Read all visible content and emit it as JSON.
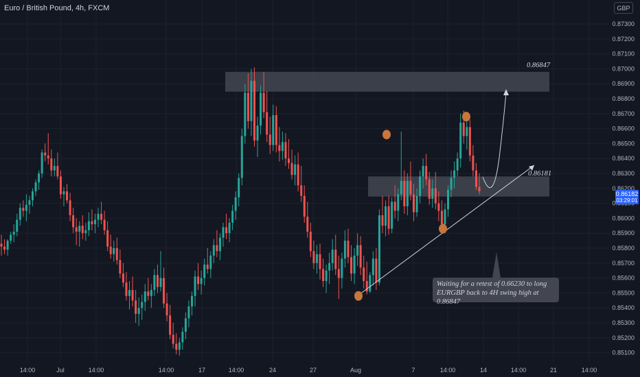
{
  "header": {
    "symbol": "Euro / British Pound, 4h, FXCM",
    "currency": "GBP"
  },
  "chart_data": {
    "type": "candlestick",
    "ylim": [
      0.8505,
      0.8738
    ],
    "y_ticks": [
      "0.87300",
      "0.87200",
      "0.87100",
      "0.87000",
      "0.86900",
      "0.86800",
      "0.86700",
      "0.86600",
      "0.86500",
      "0.86400",
      "0.86300",
      "0.86200",
      "0.86100",
      "0.86000",
      "0.85900",
      "0.85800",
      "0.85700",
      "0.85600",
      "0.85500",
      "0.85400",
      "0.85300",
      "0.85200",
      "0.85100"
    ],
    "x_ticks": [
      "14:00",
      "Jul",
      "14:00",
      "14:00",
      "17",
      "14:00",
      "24",
      "27",
      "Aug",
      "7",
      "14:00",
      "14",
      "14:00",
      "21",
      "14:00"
    ],
    "last_price": {
      "value": "0.86182",
      "countdown": "03:29:01"
    },
    "zones": [
      {
        "label": "0.86847",
        "top": 0.8698,
        "bottom": 0.86847
      },
      {
        "label": "0.86181",
        "top": 0.8628,
        "bottom": 0.86145
      }
    ],
    "annotation": "Waiting for a retest of 0.66230 to long EURGBP back to 4H swing high at 0.86847",
    "colors": {
      "up": "#26a69a",
      "down": "#ef5350",
      "marker": "#c8763a",
      "zone": "#434651"
    },
    "ohlc": [
      [
        0.8583,
        0.8589,
        0.8575,
        0.8581
      ],
      [
        0.8581,
        0.8586,
        0.8576,
        0.8579
      ],
      [
        0.8579,
        0.8586,
        0.8575,
        0.8585
      ],
      [
        0.8585,
        0.8591,
        0.8583,
        0.8589
      ],
      [
        0.8589,
        0.8596,
        0.8584,
        0.8591
      ],
      [
        0.8591,
        0.8603,
        0.8588,
        0.8599
      ],
      [
        0.8599,
        0.861,
        0.8595,
        0.8607
      ],
      [
        0.8607,
        0.8612,
        0.8601,
        0.8605
      ],
      [
        0.8605,
        0.8616,
        0.8598,
        0.8609
      ],
      [
        0.8609,
        0.8615,
        0.8603,
        0.8612
      ],
      [
        0.8612,
        0.862,
        0.8608,
        0.8618
      ],
      [
        0.8618,
        0.8626,
        0.8615,
        0.8624
      ],
      [
        0.8624,
        0.8632,
        0.8619,
        0.863
      ],
      [
        0.863,
        0.8646,
        0.8627,
        0.8644
      ],
      [
        0.8644,
        0.865,
        0.8638,
        0.8642
      ],
      [
        0.8642,
        0.8657,
        0.8636,
        0.864
      ],
      [
        0.864,
        0.8646,
        0.8628,
        0.8632
      ],
      [
        0.8632,
        0.864,
        0.8628,
        0.8635
      ],
      [
        0.8635,
        0.8644,
        0.8626,
        0.8628
      ],
      [
        0.8628,
        0.8632,
        0.8613,
        0.8616
      ],
      [
        0.8616,
        0.8621,
        0.8608,
        0.8618
      ],
      [
        0.8618,
        0.8623,
        0.861,
        0.8612
      ],
      [
        0.8612,
        0.8617,
        0.8598,
        0.8602
      ],
      [
        0.8602,
        0.8607,
        0.859,
        0.8594
      ],
      [
        0.8594,
        0.86,
        0.8582,
        0.8591
      ],
      [
        0.8591,
        0.8598,
        0.8581,
        0.8595
      ],
      [
        0.8595,
        0.8602,
        0.8586,
        0.859
      ],
      [
        0.859,
        0.8597,
        0.8585,
        0.8592
      ],
      [
        0.8592,
        0.8604,
        0.8588,
        0.8598
      ],
      [
        0.8598,
        0.8606,
        0.8592,
        0.8596
      ],
      [
        0.8596,
        0.8603,
        0.859,
        0.8599
      ],
      [
        0.8599,
        0.8607,
        0.8594,
        0.8603
      ],
      [
        0.8603,
        0.8611,
        0.8596,
        0.8599
      ],
      [
        0.8599,
        0.8605,
        0.8589,
        0.8592
      ],
      [
        0.8592,
        0.8598,
        0.8578,
        0.8581
      ],
      [
        0.8581,
        0.8589,
        0.8573,
        0.8576
      ],
      [
        0.8576,
        0.8585,
        0.8571,
        0.858
      ],
      [
        0.858,
        0.8587,
        0.8569,
        0.8572
      ],
      [
        0.8572,
        0.8579,
        0.856,
        0.8563
      ],
      [
        0.8563,
        0.857,
        0.8554,
        0.8557
      ],
      [
        0.8557,
        0.8564,
        0.8545,
        0.8548
      ],
      [
        0.8548,
        0.8558,
        0.8539,
        0.8552
      ],
      [
        0.8552,
        0.8561,
        0.8541,
        0.8545
      ],
      [
        0.8545,
        0.8552,
        0.853,
        0.8536
      ],
      [
        0.8536,
        0.8547,
        0.8528,
        0.854
      ],
      [
        0.854,
        0.8549,
        0.8532,
        0.8544
      ],
      [
        0.8544,
        0.8556,
        0.8538,
        0.8551
      ],
      [
        0.8551,
        0.856,
        0.8545,
        0.8548
      ],
      [
        0.8548,
        0.8556,
        0.854,
        0.8552
      ],
      [
        0.8552,
        0.8566,
        0.8548,
        0.8562
      ],
      [
        0.8562,
        0.8569,
        0.855,
        0.8554
      ],
      [
        0.8554,
        0.8578,
        0.8551,
        0.856
      ],
      [
        0.856,
        0.8567,
        0.854,
        0.8543
      ],
      [
        0.8543,
        0.855,
        0.8531,
        0.8535
      ],
      [
        0.8535,
        0.8542,
        0.8519,
        0.8522
      ],
      [
        0.8522,
        0.853,
        0.8513,
        0.8516
      ],
      [
        0.8516,
        0.8523,
        0.8509,
        0.8512
      ],
      [
        0.8512,
        0.852,
        0.8508,
        0.8517
      ],
      [
        0.8517,
        0.8527,
        0.8512,
        0.8524
      ],
      [
        0.8524,
        0.8537,
        0.8519,
        0.8533
      ],
      [
        0.8533,
        0.8545,
        0.8527,
        0.8541
      ],
      [
        0.8541,
        0.8551,
        0.8535,
        0.8548
      ],
      [
        0.8548,
        0.8565,
        0.8541,
        0.8561
      ],
      [
        0.8561,
        0.857,
        0.8552,
        0.8556
      ],
      [
        0.8556,
        0.8565,
        0.8549,
        0.856
      ],
      [
        0.856,
        0.8573,
        0.8555,
        0.8569
      ],
      [
        0.8569,
        0.858,
        0.8563,
        0.8566
      ],
      [
        0.8566,
        0.8578,
        0.856,
        0.8575
      ],
      [
        0.8575,
        0.8586,
        0.857,
        0.8582
      ],
      [
        0.8582,
        0.8592,
        0.8574,
        0.8578
      ],
      [
        0.8578,
        0.859,
        0.8572,
        0.8587
      ],
      [
        0.8587,
        0.8597,
        0.8581,
        0.8594
      ],
      [
        0.8594,
        0.8603,
        0.8586,
        0.859
      ],
      [
        0.859,
        0.86,
        0.8584,
        0.8597
      ],
      [
        0.8597,
        0.8609,
        0.8592,
        0.8605
      ],
      [
        0.8605,
        0.8618,
        0.8599,
        0.8614
      ],
      [
        0.8614,
        0.863,
        0.8608,
        0.8627
      ],
      [
        0.8627,
        0.866,
        0.8622,
        0.8655
      ],
      [
        0.8655,
        0.869,
        0.865,
        0.8684
      ],
      [
        0.8684,
        0.8697,
        0.866,
        0.8665
      ],
      [
        0.8665,
        0.87,
        0.8655,
        0.8692
      ],
      [
        0.8692,
        0.8701,
        0.8648,
        0.8652
      ],
      [
        0.8652,
        0.8668,
        0.8641,
        0.8662
      ],
      [
        0.8662,
        0.8689,
        0.8656,
        0.8684
      ],
      [
        0.8684,
        0.8698,
        0.8667,
        0.8671
      ],
      [
        0.8671,
        0.8685,
        0.8651,
        0.8656
      ],
      [
        0.8656,
        0.8668,
        0.8643,
        0.8649
      ],
      [
        0.8649,
        0.8676,
        0.8645,
        0.8669
      ],
      [
        0.8669,
        0.8675,
        0.8644,
        0.8649
      ],
      [
        0.8649,
        0.8661,
        0.8638,
        0.8645
      ],
      [
        0.8645,
        0.8658,
        0.8639,
        0.8651
      ],
      [
        0.8651,
        0.8657,
        0.8635,
        0.864
      ],
      [
        0.864,
        0.8653,
        0.8633,
        0.8637
      ],
      [
        0.8637,
        0.8646,
        0.8626,
        0.8629
      ],
      [
        0.8629,
        0.8642,
        0.8622,
        0.8636
      ],
      [
        0.8636,
        0.8644,
        0.8618,
        0.8622
      ],
      [
        0.8622,
        0.8635,
        0.8611,
        0.8615
      ],
      [
        0.8615,
        0.8622,
        0.8597,
        0.8601
      ],
      [
        0.8601,
        0.8611,
        0.8587,
        0.8591
      ],
      [
        0.8591,
        0.8597,
        0.8574,
        0.8578
      ],
      [
        0.8578,
        0.8585,
        0.8566,
        0.857
      ],
      [
        0.857,
        0.8582,
        0.8563,
        0.8576
      ],
      [
        0.8576,
        0.8583,
        0.8559,
        0.8566
      ],
      [
        0.8566,
        0.8573,
        0.8554,
        0.8558
      ],
      [
        0.8558,
        0.8569,
        0.855,
        0.8565
      ],
      [
        0.8565,
        0.8577,
        0.8556,
        0.857
      ],
      [
        0.857,
        0.8586,
        0.8565,
        0.8579
      ],
      [
        0.8579,
        0.8589,
        0.8562,
        0.8566
      ],
      [
        0.8566,
        0.8575,
        0.8546,
        0.856
      ],
      [
        0.856,
        0.8577,
        0.8553,
        0.8573
      ],
      [
        0.8573,
        0.8592,
        0.8567,
        0.8585
      ],
      [
        0.8585,
        0.8593,
        0.857,
        0.8574
      ],
      [
        0.8574,
        0.8582,
        0.8558,
        0.8563
      ],
      [
        0.8563,
        0.858,
        0.8556,
        0.8575
      ],
      [
        0.8575,
        0.859,
        0.8568,
        0.8582
      ],
      [
        0.8582,
        0.8588,
        0.8562,
        0.8567
      ],
      [
        0.8567,
        0.8575,
        0.8553,
        0.8558
      ],
      [
        0.8558,
        0.8571,
        0.8549,
        0.8551
      ],
      [
        0.8551,
        0.8564,
        0.855,
        0.8562
      ],
      [
        0.8562,
        0.8578,
        0.8555,
        0.8573
      ],
      [
        0.8573,
        0.858,
        0.8552,
        0.8557
      ],
      [
        0.8557,
        0.8606,
        0.8555,
        0.8602
      ],
      [
        0.8602,
        0.8615,
        0.859,
        0.8595
      ],
      [
        0.8595,
        0.8612,
        0.8588,
        0.8608
      ],
      [
        0.8608,
        0.8615,
        0.8589,
        0.8593
      ],
      [
        0.8593,
        0.8614,
        0.859,
        0.8611
      ],
      [
        0.8611,
        0.8622,
        0.86,
        0.8605
      ],
      [
        0.8605,
        0.862,
        0.8598,
        0.8616
      ],
      [
        0.8616,
        0.8658,
        0.8612,
        0.8625
      ],
      [
        0.8625,
        0.8632,
        0.8603,
        0.8608
      ],
      [
        0.8608,
        0.863,
        0.8602,
        0.8625
      ],
      [
        0.8625,
        0.8638,
        0.8612,
        0.8616
      ],
      [
        0.8616,
        0.8623,
        0.8598,
        0.8604
      ],
      [
        0.8604,
        0.862,
        0.8601,
        0.8615
      ],
      [
        0.8615,
        0.8632,
        0.861,
        0.8628
      ],
      [
        0.8628,
        0.864,
        0.862,
        0.8635
      ],
      [
        0.8635,
        0.8643,
        0.8622,
        0.8626
      ],
      [
        0.8626,
        0.8631,
        0.8609,
        0.8613
      ],
      [
        0.8613,
        0.8626,
        0.8607,
        0.862
      ],
      [
        0.862,
        0.8631,
        0.8606,
        0.861
      ],
      [
        0.861,
        0.8618,
        0.8598,
        0.8605
      ],
      [
        0.8605,
        0.8612,
        0.8592,
        0.8596
      ],
      [
        0.8596,
        0.861,
        0.859,
        0.8606
      ],
      [
        0.8606,
        0.8622,
        0.8601,
        0.8619
      ],
      [
        0.8619,
        0.8632,
        0.8614,
        0.8627
      ],
      [
        0.8627,
        0.8638,
        0.862,
        0.8632
      ],
      [
        0.8632,
        0.8644,
        0.8628,
        0.864
      ],
      [
        0.864,
        0.867,
        0.8634,
        0.8664
      ],
      [
        0.8664,
        0.8672,
        0.865,
        0.8655
      ],
      [
        0.8655,
        0.8668,
        0.8646,
        0.8661
      ],
      [
        0.8661,
        0.8666,
        0.8638,
        0.8642
      ],
      [
        0.8642,
        0.8649,
        0.8628,
        0.8632
      ],
      [
        0.8632,
        0.8637,
        0.8619,
        0.8621
      ],
      [
        0.8621,
        0.863,
        0.8616,
        0.8618
      ]
    ],
    "markers": [
      [
        0.8548,
        0.8548
      ],
      [
        0.8656,
        0.8656
      ],
      [
        0.8593,
        0.8593
      ],
      [
        0.8668,
        0.8668
      ]
    ]
  }
}
